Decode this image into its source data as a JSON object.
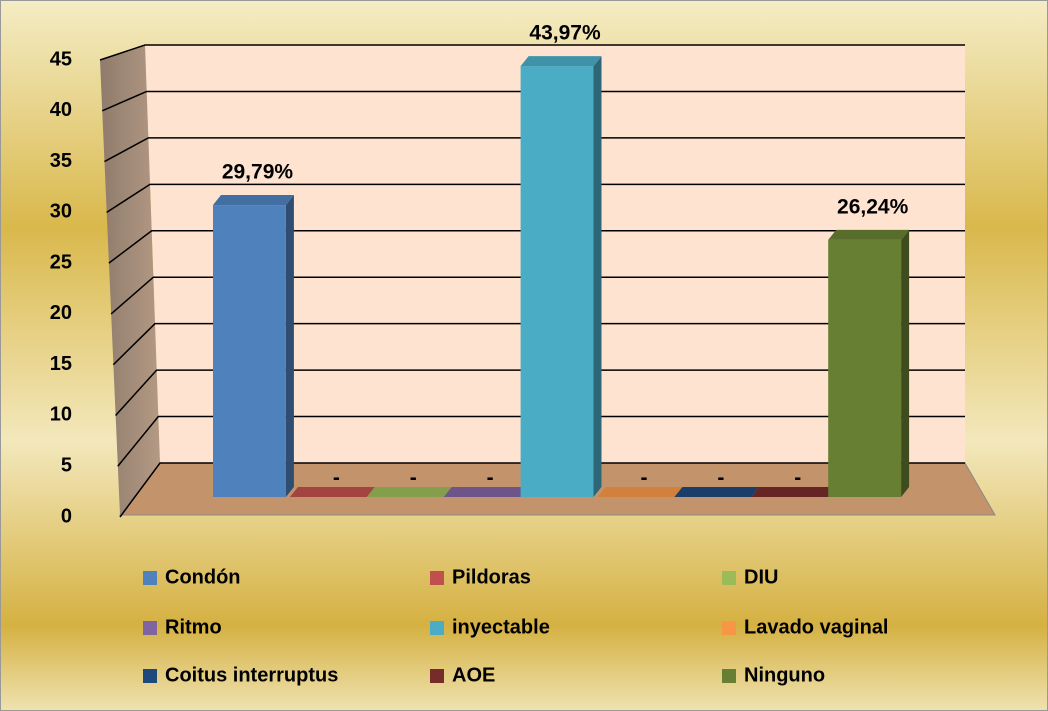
{
  "chart_data": {
    "type": "bar3d",
    "categories": [
      "Condón",
      "Pildoras",
      "DIU",
      "Ritmo",
      "inyectable",
      "Lavado vaginal",
      "Coitus interruptus",
      "AOE",
      "Ninguno"
    ],
    "values": [
      29.79,
      0,
      0,
      0,
      43.97,
      0,
      0,
      0,
      26.24
    ],
    "value_labels": [
      "29,79%",
      "-",
      "-",
      "-",
      "43,97%",
      "-",
      "-",
      "-",
      "26,24%"
    ],
    "colors": [
      "#4f81bd",
      "#c0504d",
      "#9bbb59",
      "#8064a2",
      "#4bacc6",
      "#f79646",
      "#1f497d",
      "#772c2a",
      "#677f32"
    ],
    "ylim": [
      0,
      45
    ],
    "yticks": [
      0,
      5,
      10,
      15,
      20,
      25,
      30,
      35,
      40,
      45
    ],
    "grid": true,
    "legend": "bottom"
  }
}
